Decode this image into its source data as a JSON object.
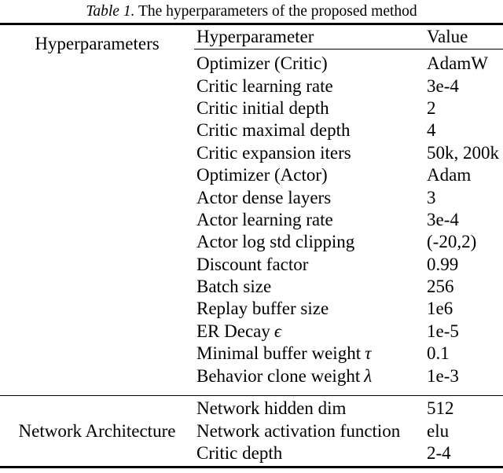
{
  "caption": {
    "label": "Table 1.",
    "text": " The hyperparameters of the proposed method"
  },
  "colors": {
    "background": "#ffffff",
    "text": "#000000",
    "rule": "#000000"
  },
  "table": {
    "col_headers": {
      "param": "Hyperparameter",
      "value": "Value"
    },
    "sections": [
      {
        "label": "Hyperparameters",
        "rows": [
          {
            "param": "Optimizer (Critic)",
            "sym": "",
            "value": "AdamW"
          },
          {
            "param": "Critic learning rate",
            "sym": "",
            "value": "3e-4"
          },
          {
            "param": "Critic initial depth",
            "sym": "",
            "value": "2"
          },
          {
            "param": "Critic maximal depth",
            "sym": "",
            "value": "4"
          },
          {
            "param": "Critic expansion iters",
            "sym": "",
            "value": "50k, 200k"
          },
          {
            "param": "Optimizer (Actor)",
            "sym": "",
            "value": "Adam"
          },
          {
            "param": "Actor dense layers",
            "sym": "",
            "value": "3"
          },
          {
            "param": "Actor learning rate",
            "sym": "",
            "value": "3e-4"
          },
          {
            "param": "Actor log std clipping",
            "sym": "",
            "value": "(-20,2)"
          },
          {
            "param": "Discount factor",
            "sym": "",
            "value": "0.99"
          },
          {
            "param": "Batch size",
            "sym": "",
            "value": "256"
          },
          {
            "param": "Replay buffer size",
            "sym": "",
            "value": "1e6"
          },
          {
            "param": "ER Decay",
            "sym": "ϵ",
            "value": "1e-5"
          },
          {
            "param": "Minimal buffer weight",
            "sym": "τ",
            "value": "0.1"
          },
          {
            "param": "Behavior clone weight",
            "sym": "λ",
            "value": "1e-3"
          }
        ]
      },
      {
        "label": "Network Architecture",
        "rows": [
          {
            "param": "Network hidden dim",
            "sym": "",
            "value": "512"
          },
          {
            "param": "Network activation function",
            "sym": "",
            "value": "elu"
          },
          {
            "param": "Critic depth",
            "sym": "",
            "value": "2-4"
          }
        ]
      }
    ]
  }
}
